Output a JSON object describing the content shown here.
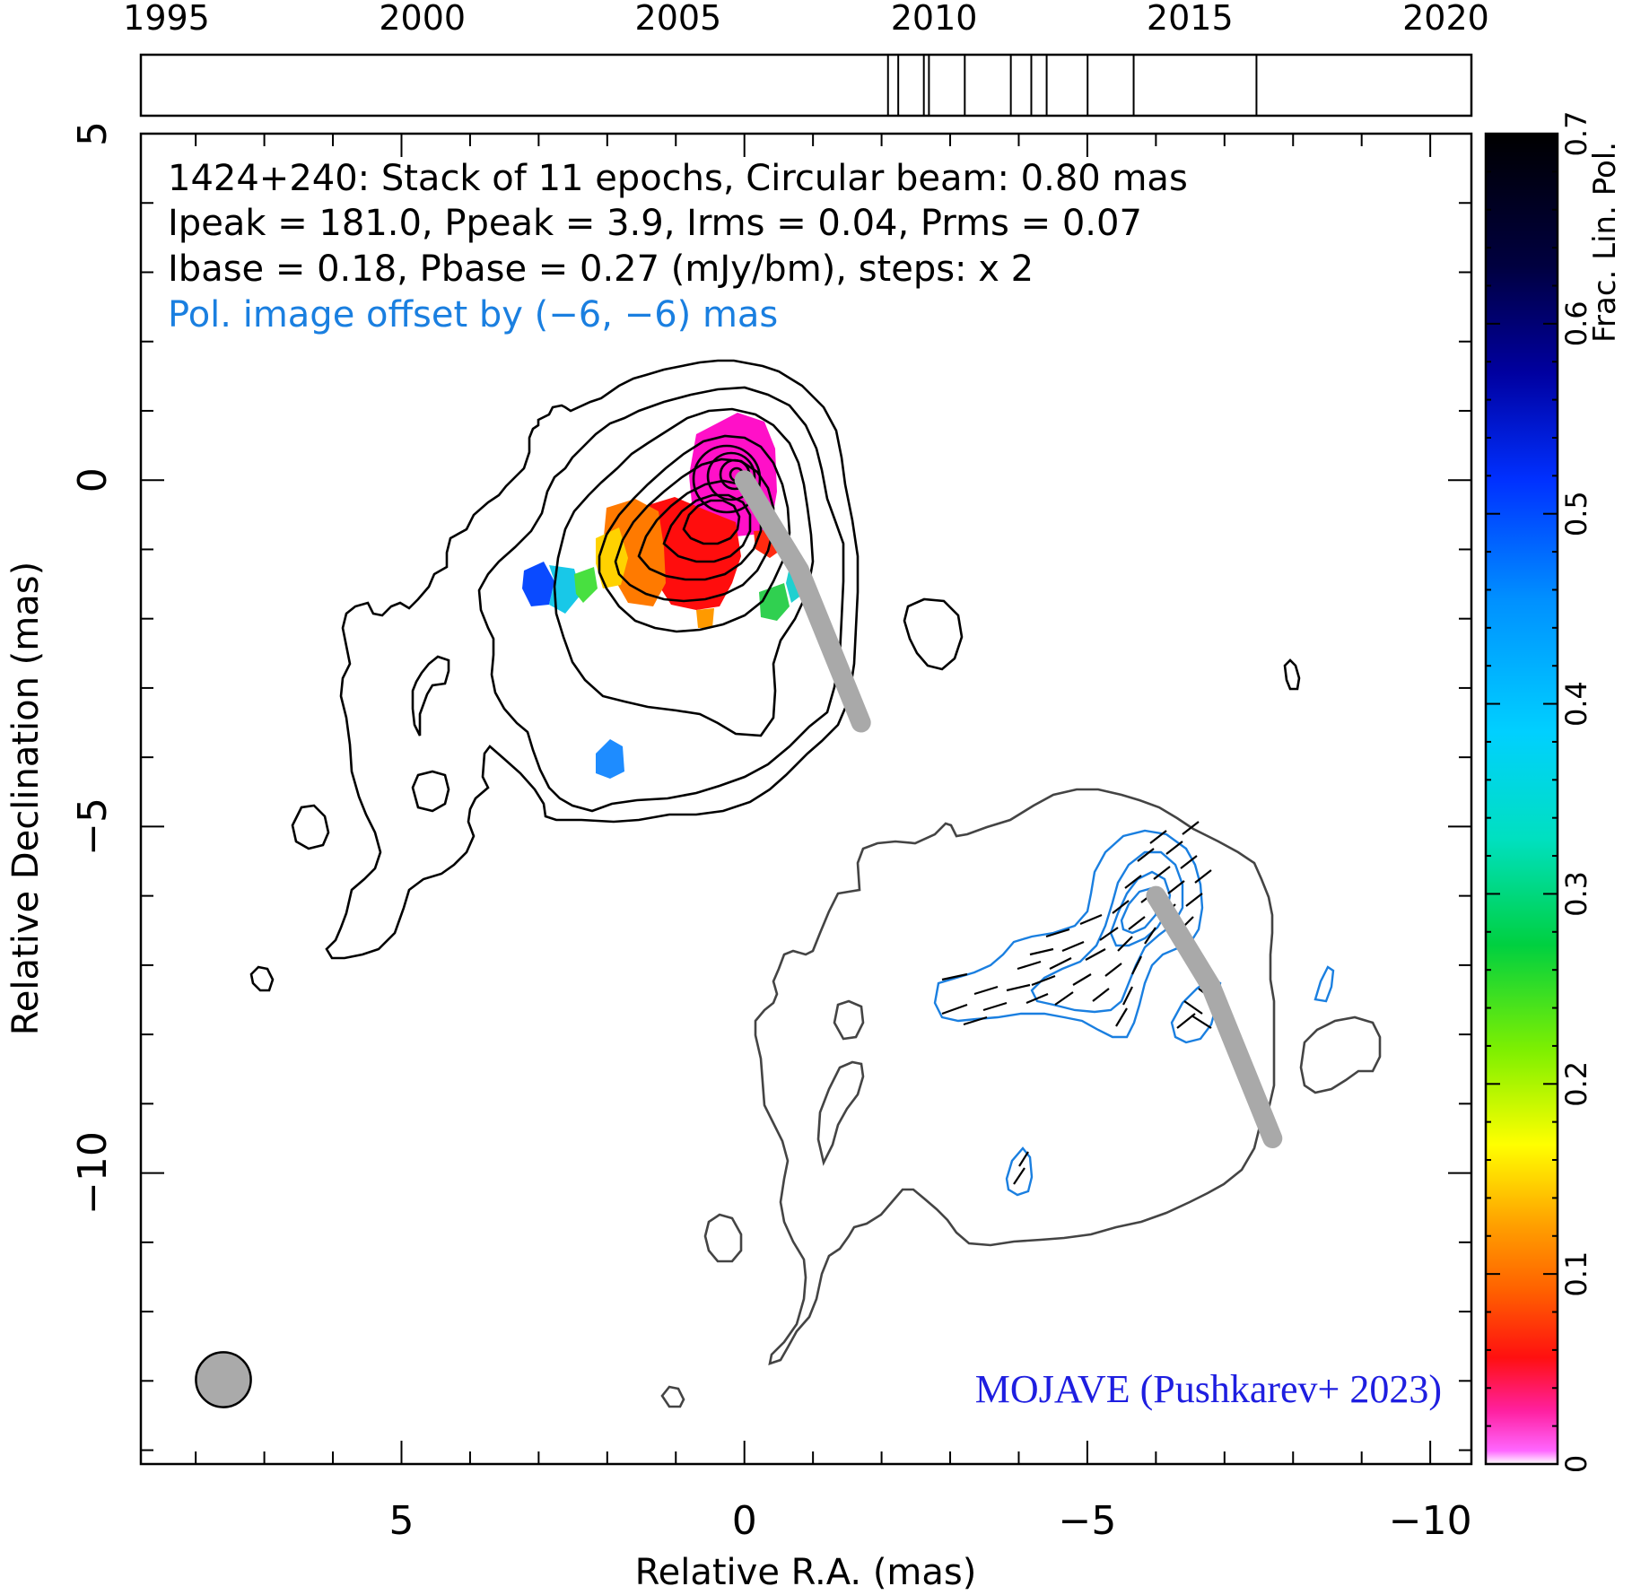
{
  "chart_data": {
    "type": "heatmap",
    "source": "1424+240",
    "annotation_lines": [
      "1424+240: Stack of 11 epochs, Circular beam: 0.80 mas",
      "Ipeak = 181.0, Ppeak = 3.9, Irms = 0.04, Prms = 0.07",
      "Ibase = 0.18, Pbase = 0.27 (mJy/bm), steps: x 2"
    ],
    "offset_note": "Pol. image offset by (−6, −6) mas",
    "credit": "MOJAVE (Pushkarev+ 2023)",
    "xlabel": "Relative R.A. (mas)",
    "ylabel": "Relative Declination (mas)",
    "colorbar_label": "Frac. Lin. Pol.",
    "xlim": [
      8.8,
      -10.6
    ],
    "ylim": [
      -14.2,
      5
    ],
    "x_ticks": [
      5,
      0,
      -5,
      -10
    ],
    "x_tick_labels": [
      "5",
      "0",
      "−5",
      "−10"
    ],
    "y_ticks": [
      5,
      0,
      -5,
      -10
    ],
    "y_tick_labels": [
      "5",
      "0",
      "−5",
      "−10"
    ],
    "colorbar_range": [
      0,
      0.7
    ],
    "colorbar_ticks": [
      0,
      0.1,
      0.2,
      0.3,
      0.4,
      0.5,
      0.6,
      0.7
    ],
    "colorbar_tick_labels": [
      "0",
      "0.1",
      "0.2",
      "0.3",
      "0.4",
      "0.5",
      "0.6",
      "0.7"
    ],
    "timeline": {
      "range": [
        1994.5,
        2020.5
      ],
      "tick_years": [
        1995,
        2000,
        2005,
        2010,
        2015,
        2020
      ],
      "tick_labels": [
        "1995",
        "2000",
        "2005",
        "2010",
        "2015",
        "2020"
      ],
      "epochs": [
        2009.1,
        2009.3,
        2009.8,
        2009.9,
        2010.6,
        2011.5,
        2011.9,
        2012.2,
        2013.0,
        2013.9,
        2016.3
      ]
    },
    "beam_diameter_mas": 0.8,
    "ridge_line": [
      [
        0,
        0
      ],
      [
        -0.8,
        -1.3
      ],
      [
        -1.7,
        -3.5
      ]
    ],
    "ridge_line_offset": [
      [
        -6,
        -6
      ],
      [
        -6.8,
        -7.3
      ],
      [
        -7.7,
        -9.5
      ]
    ],
    "colors": {
      "contour_total": "#000000",
      "contour_total_offset": "#444444",
      "contour_pol": "#1a7fe0",
      "offset_note": "#1a7fe0",
      "credit": "#1e1ee0",
      "ridge": "#a9a9a9"
    }
  }
}
